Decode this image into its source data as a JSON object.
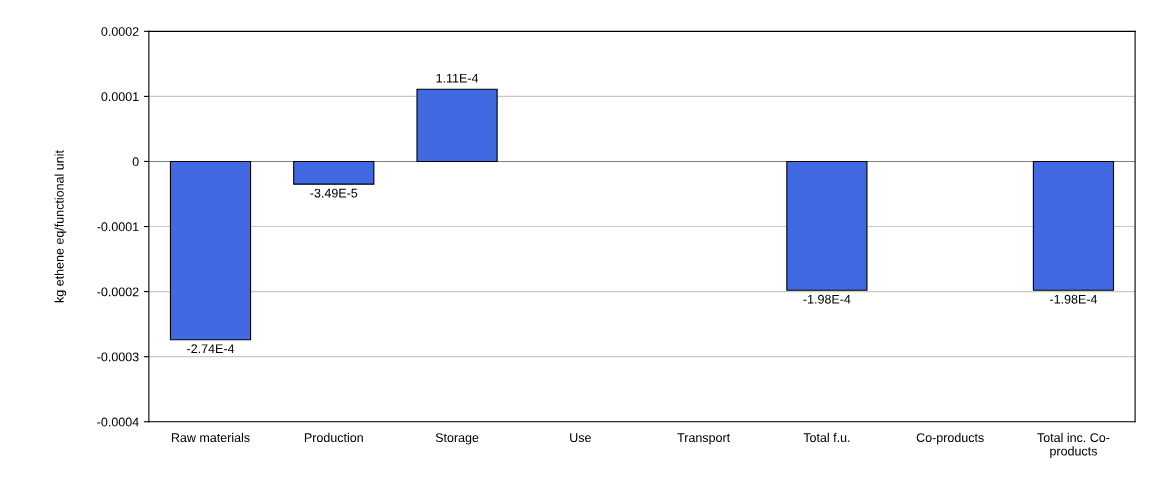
{
  "chart_data": {
    "type": "bar",
    "ylabel": "kg ethene eq/functional unit",
    "categories": [
      "Raw materials",
      "Production",
      "Storage",
      "Use",
      "Transport",
      "Total f.u.",
      "Co-products",
      "Total inc. Co-\nproducts"
    ],
    "values": [
      -0.000274,
      -3.49e-05,
      0.000111,
      null,
      null,
      -0.000198,
      null,
      -0.000198
    ],
    "value_labels": [
      "-2.74E-4",
      "-3.49E-5",
      "1.11E-4",
      null,
      null,
      "-1.98E-4",
      null,
      "-1.98E-4"
    ],
    "color": "#4169e1",
    "ylim": [
      -0.0004,
      0.0002
    ],
    "yticks": [
      -0.0004,
      -0.0003,
      -0.0002,
      -0.0001,
      0,
      0.0001,
      0.0002
    ],
    "grid": "y",
    "legend": false
  }
}
